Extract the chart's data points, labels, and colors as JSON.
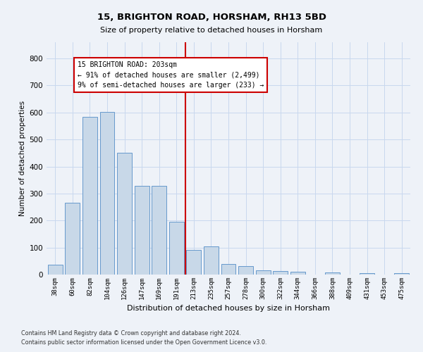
{
  "title1": "15, BRIGHTON ROAD, HORSHAM, RH13 5BD",
  "title2": "Size of property relative to detached houses in Horsham",
  "xlabel": "Distribution of detached houses by size in Horsham",
  "ylabel": "Number of detached properties",
  "footnote1": "Contains HM Land Registry data © Crown copyright and database right 2024.",
  "footnote2": "Contains public sector information licensed under the Open Government Licence v3.0.",
  "bar_labels": [
    "38sqm",
    "60sqm",
    "82sqm",
    "104sqm",
    "126sqm",
    "147sqm",
    "169sqm",
    "191sqm",
    "213sqm",
    "235sqm",
    "257sqm",
    "278sqm",
    "300sqm",
    "322sqm",
    "344sqm",
    "366sqm",
    "388sqm",
    "409sqm",
    "431sqm",
    "453sqm",
    "475sqm"
  ],
  "bar_values": [
    36,
    265,
    585,
    603,
    450,
    328,
    328,
    196,
    90,
    103,
    38,
    30,
    15,
    12,
    10,
    0,
    7,
    0,
    5,
    0,
    6
  ],
  "bar_color": "#c8d8e8",
  "bar_edge_color": "#6699cc",
  "vline_x": 8.0,
  "vline_color": "#cc0000",
  "annotation_text": "15 BRIGHTON ROAD: 203sqm\n← 91% of detached houses are smaller (2,499)\n9% of semi-detached houses are larger (233) →",
  "annotation_box_color": "#ffffff",
  "annotation_box_edge": "#cc0000",
  "ylim": [
    0,
    860
  ],
  "yticks": [
    0,
    100,
    200,
    300,
    400,
    500,
    600,
    700,
    800
  ],
  "grid_color": "#c8d8ee",
  "bg_color": "#eef2f8"
}
